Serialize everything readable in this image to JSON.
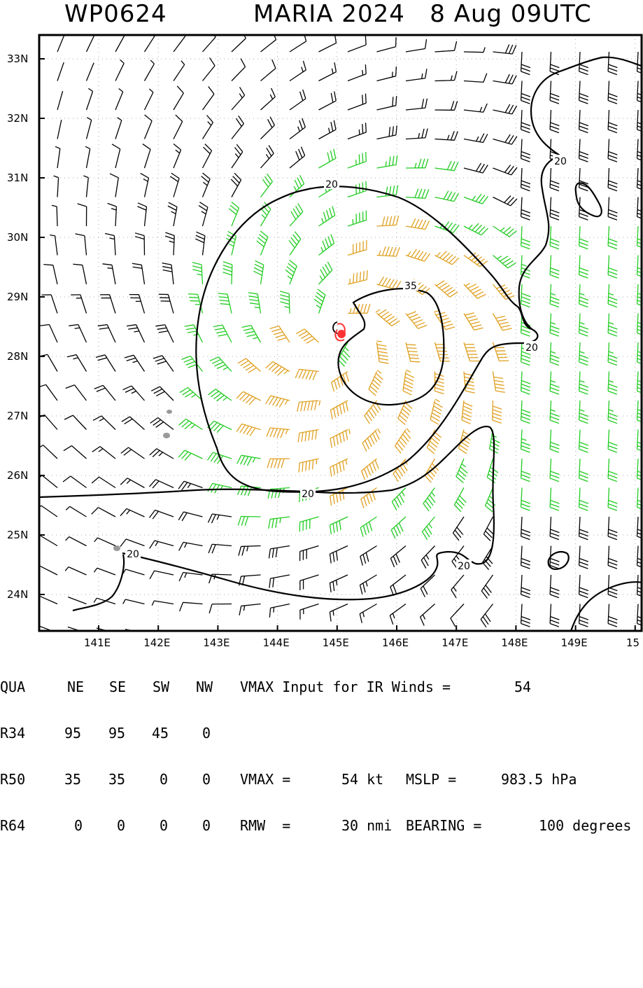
{
  "header": {
    "storm_id": "WP0624",
    "storm_title": "MARIA 2024   8 Aug 09UTC"
  },
  "map": {
    "lat_labels": [
      "33N",
      "32N",
      "31N",
      "30N",
      "29N",
      "28N",
      "27N",
      "26N",
      "25N",
      "24N"
    ],
    "lon_labels": [
      "141E",
      "142E",
      "143E",
      "144E",
      "145E",
      "146E",
      "147E",
      "148E",
      "149E",
      "15"
    ],
    "lat_range": [
      23.4,
      33.5
    ],
    "lon_range": [
      140.0,
      150.0
    ],
    "contour_labels": [
      "20",
      "20",
      "20",
      "20",
      "20",
      "35",
      "20",
      "20"
    ],
    "center": {
      "lat": 28.4,
      "lon": 145.05
    },
    "colors": {
      "below_34kt": "#000000",
      "gale_34_49kt": "#22cc22",
      "storm_50_63kt": "#e0a020",
      "contour": "#000000",
      "center_marker": "#ff3333",
      "grid": "#aaaaaa",
      "land": "#999999"
    }
  },
  "info": {
    "header_row": {
      "qua": "QUA",
      "ne": "NE",
      "se": "SE",
      "sw": "SW",
      "nw": "NW",
      "vmax_input": "VMAX Input for IR Winds =",
      "vmax_input_value": "54"
    },
    "r34": {
      "label": "R34",
      "ne": "95",
      "se": "95",
      "sw": "45",
      "nw": "0"
    },
    "r50": {
      "label": "R50",
      "ne": "35",
      "se": "35",
      "sw": "0",
      "nw": "0",
      "vmax_text": "VMAX =",
      "vmax_value": "54 kt",
      "mslp_text": "MSLP =",
      "mslp_value": "983.5 hPa"
    },
    "r64": {
      "label": "R64",
      "ne": "0",
      "se": "0",
      "sw": "0",
      "nw": "0",
      "rmw_text": "RMW  =",
      "rmw_value": "30 nmi",
      "bearing_text": "BEARING =",
      "bearing_value": "100 degrees"
    }
  }
}
